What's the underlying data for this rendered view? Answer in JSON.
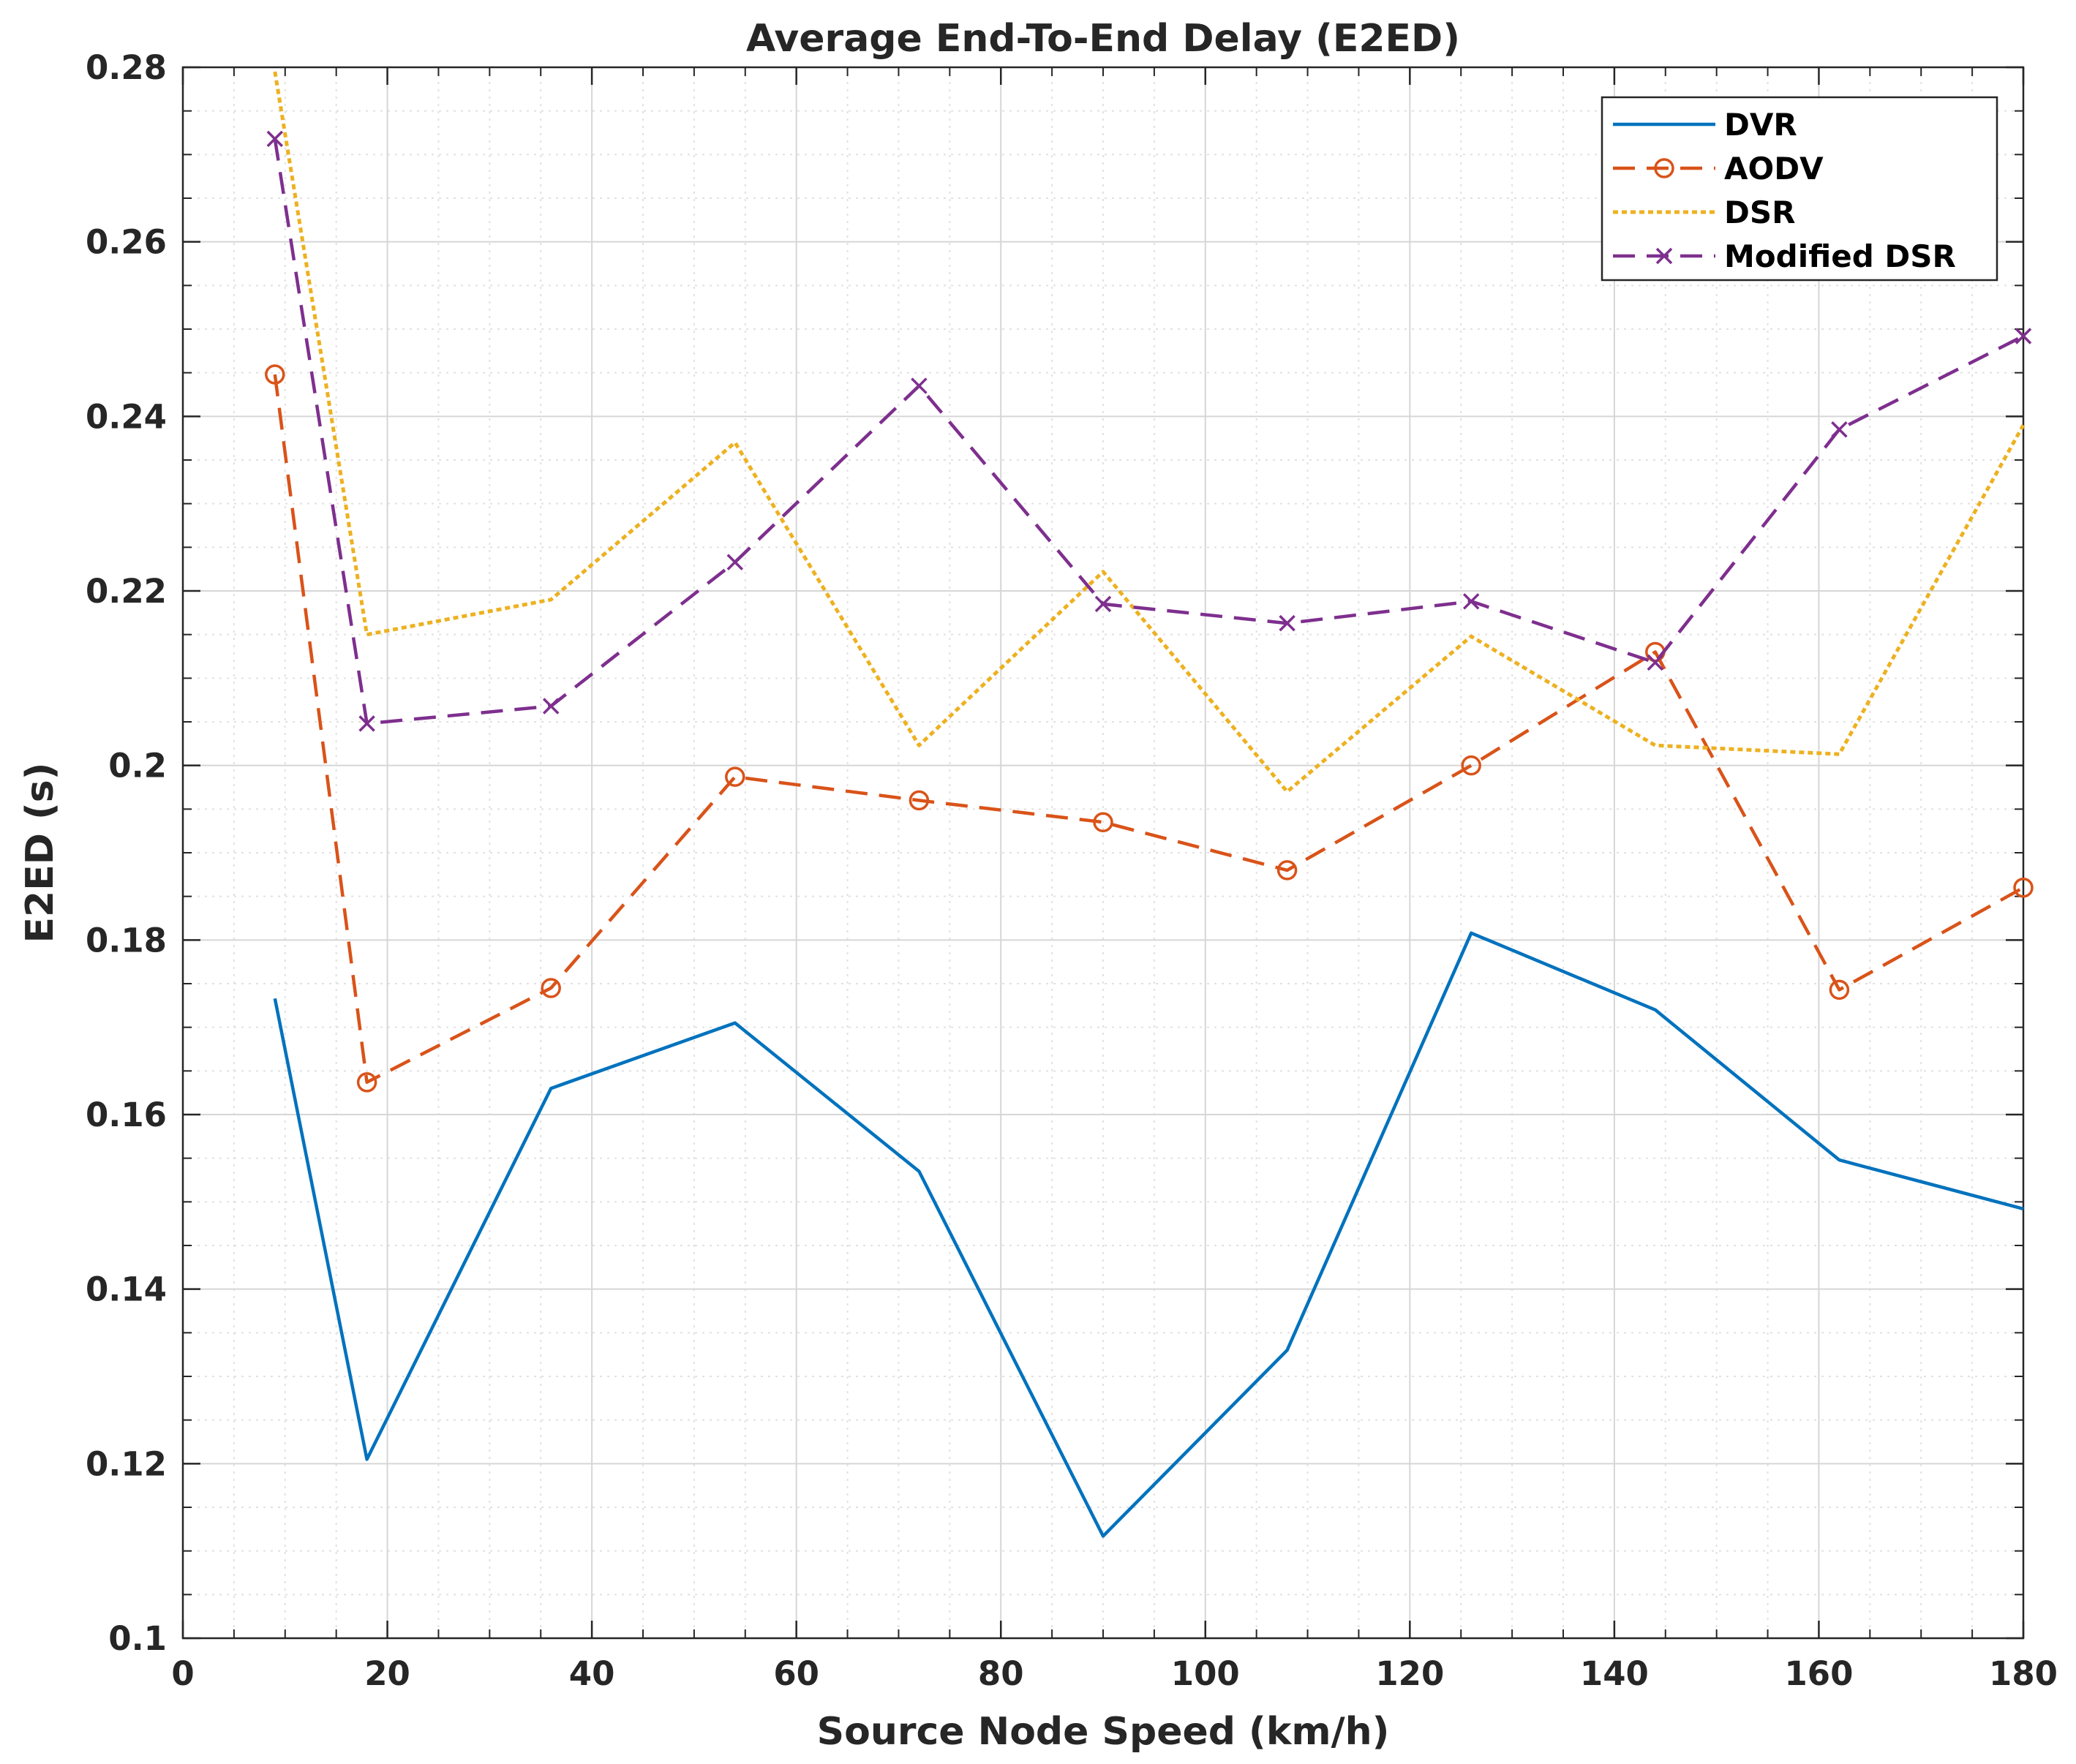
{
  "chart_data": {
    "type": "line",
    "title": "Average End-To-End Delay (E2ED)",
    "xlabel": "Source Node Speed (km/h)",
    "ylabel": "E2ED (s)",
    "xlim": [
      0,
      180
    ],
    "ylim": [
      0.1,
      0.28
    ],
    "xticks": [
      0,
      20,
      40,
      60,
      80,
      100,
      120,
      140,
      160,
      180
    ],
    "xtick_labels": [
      "0",
      "20",
      "40",
      "60",
      "80",
      "100",
      "120",
      "140",
      "160",
      "180"
    ],
    "yticks": [
      0.1,
      0.12,
      0.14,
      0.16,
      0.18,
      0.2,
      0.22,
      0.24,
      0.26,
      0.28
    ],
    "ytick_labels": [
      "0.1",
      "0.12",
      "0.14",
      "0.16",
      "0.18",
      "0.2",
      "0.22",
      "0.24",
      "0.26",
      "0.28"
    ],
    "grid": true,
    "minor_grid": true,
    "legend_position": "top-right",
    "x": [
      9,
      18,
      36,
      54,
      72,
      90,
      108,
      126,
      144,
      162,
      180
    ],
    "series": [
      {
        "name": "DVR",
        "color": "#0072bd",
        "style": "solid",
        "marker": "none",
        "values": [
          0.1733,
          0.1205,
          0.163,
          0.1705,
          0.1535,
          0.1117,
          0.133,
          0.1808,
          0.172,
          0.1548,
          0.1492
        ]
      },
      {
        "name": "AODV",
        "color": "#d95319",
        "style": "dashed",
        "marker": "circle",
        "values": [
          0.2448,
          0.1637,
          0.1745,
          0.1987,
          0.196,
          0.1935,
          0.188,
          0.2,
          0.213,
          0.1743,
          0.186
        ]
      },
      {
        "name": "DSR",
        "color": "#edb120",
        "style": "dotted",
        "marker": "none",
        "values": [
          0.2795,
          0.215,
          0.219,
          0.237,
          0.2023,
          0.2222,
          0.197,
          0.2148,
          0.2023,
          0.2013,
          0.239
        ]
      },
      {
        "name": "Modified DSR",
        "color": "#7e2f8e",
        "style": "dashed",
        "marker": "x",
        "values": [
          0.2718,
          0.2048,
          0.2068,
          0.2233,
          0.2435,
          0.2185,
          0.2163,
          0.2188,
          0.2118,
          0.2385,
          0.2492
        ]
      }
    ]
  }
}
